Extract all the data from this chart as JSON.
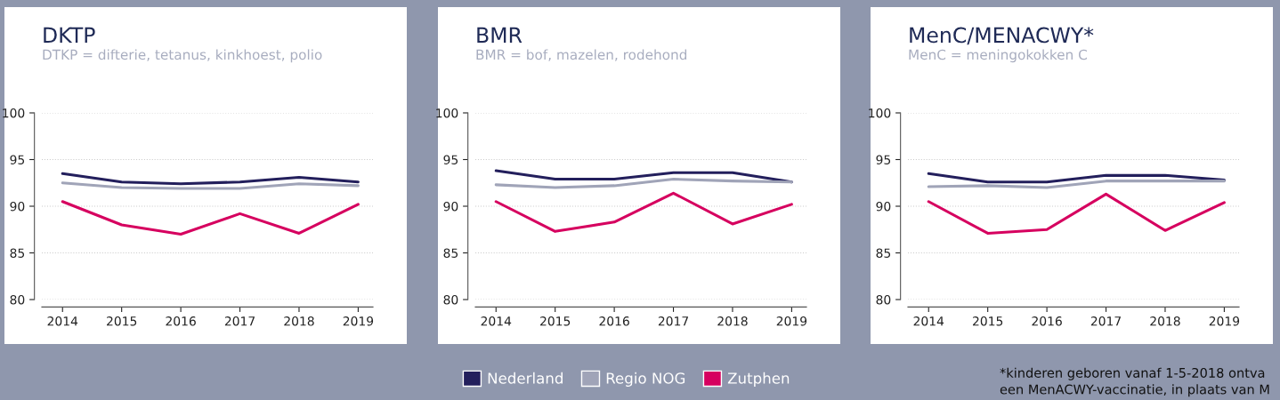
{
  "chart_data": [
    {
      "type": "line",
      "title": "DKTP",
      "subtitle": "DTKP = difterie, tetanus, kinkhoest, polio",
      "categories": [
        "2014",
        "2015",
        "2016",
        "2017",
        "2018",
        "2019"
      ],
      "ylim": [
        80,
        100
      ],
      "yticks": [
        80,
        85,
        90,
        95,
        100
      ],
      "grid": "y",
      "series": [
        {
          "color": "#231f5c",
          "values": [
            93.5,
            92.6,
            92.4,
            92.6,
            93.1,
            92.6
          ]
        },
        {
          "color": "#a0a4b8",
          "values": [
            92.5,
            92.0,
            91.9,
            91.9,
            92.4,
            92.2
          ]
        },
        {
          "color": "#d6005f",
          "values": [
            90.5,
            88.0,
            87.0,
            89.2,
            87.1,
            90.2
          ]
        }
      ]
    },
    {
      "type": "line",
      "title": "BMR",
      "subtitle": "BMR = bof, mazelen, rodehond",
      "categories": [
        "2014",
        "2015",
        "2016",
        "2017",
        "2018",
        "2019"
      ],
      "ylim": [
        80,
        100
      ],
      "yticks": [
        80,
        85,
        90,
        95,
        100
      ],
      "grid": "y",
      "legend": "bottom",
      "series": [
        {
          "name": "Nederland",
          "color": "#231f5c",
          "values": [
            93.8,
            92.9,
            92.9,
            93.6,
            93.6,
            92.6
          ]
        },
        {
          "name": "Regio NOG",
          "color": "#a0a4b8",
          "values": [
            92.3,
            92.0,
            92.2,
            92.9,
            92.7,
            92.6
          ]
        },
        {
          "name": "Zutphen",
          "color": "#d6005f",
          "values": [
            90.5,
            87.3,
            88.3,
            91.4,
            88.1,
            90.2
          ]
        }
      ]
    },
    {
      "type": "line",
      "title": "MenC/MENACWY*",
      "subtitle": "MenC = meningokokken C",
      "categories": [
        "2014",
        "2015",
        "2016",
        "2017",
        "2018",
        "2019"
      ],
      "ylim": [
        80,
        100
      ],
      "yticks": [
        80,
        85,
        90,
        95,
        100
      ],
      "grid": "y",
      "annotations": [
        "*kinderen geboren vanaf 1-5-2018 ontva\neen MenACWY-vaccinatie, in plaats van M"
      ],
      "series": [
        {
          "color": "#231f5c",
          "values": [
            93.5,
            92.6,
            92.6,
            93.3,
            93.3,
            92.8
          ]
        },
        {
          "color": "#a0a4b8",
          "values": [
            92.1,
            92.2,
            92.0,
            92.7,
            92.7,
            92.7
          ]
        },
        {
          "color": "#d6005f",
          "values": [
            90.5,
            87.1,
            87.5,
            91.3,
            87.4,
            90.4
          ]
        }
      ]
    }
  ]
}
